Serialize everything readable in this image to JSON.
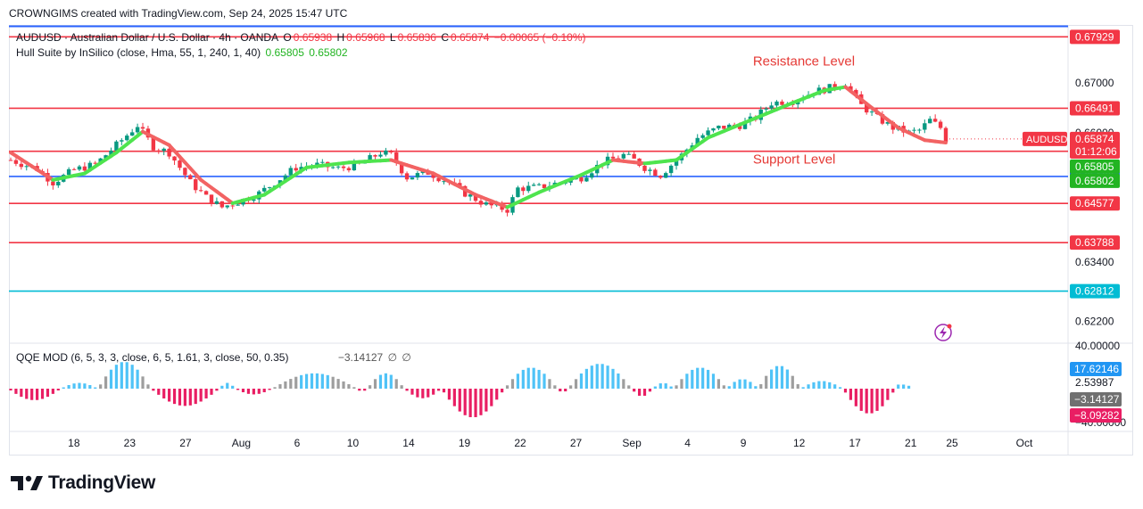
{
  "header": {
    "credit": "CROWNGIMS created with TradingView.com, Sep 24, 2025 15:47 UTC"
  },
  "legend": {
    "symbol_line": "AUDUSD · Australian Dollar / U.S. Dollar · 4h · OANDA",
    "o_label": "O",
    "o_value": "0.65938",
    "h_label": "H",
    "h_value": "0.65968",
    "l_label": "L",
    "l_value": "0.65836",
    "c_label": "C",
    "c_value": "0.65874",
    "change": "−0.00065 (−0.10%)",
    "hull_label": "Hull Suite by InSilico (close, Hma, 55, 1, 240, 1, 40)",
    "hull_value1": "0.65805",
    "hull_value2": "0.65802",
    "qqe_label": "QQE MOD (6, 5, 3, 3, close, 6, 5, 1.61, 3, close, 50, 0.35)",
    "qqe_value": "−3.14127",
    "qqe_empty1": "∅",
    "qqe_empty2": "∅"
  },
  "brand": {
    "name": "TradingView"
  },
  "colors": {
    "up": "#089981",
    "down": "#f23645",
    "hull_up": "#4ee44e",
    "hull_down": "#f26363",
    "resistance": "#f23645",
    "support_blue": "#2962ff",
    "teal": "#00bcd4",
    "qqe_pink": "#e91e63",
    "qqe_blue": "#4fc3f7",
    "qqe_gray": "#9e9e9e"
  },
  "chart_data": {
    "type": "candlestick",
    "symbol": "AUDUSD",
    "timeframe": "4h",
    "currency_label": "USD",
    "y_range": [
      0.618,
      0.6815
    ],
    "x_labels": [
      "18",
      "23",
      "27",
      "Aug",
      "6",
      "10",
      "14",
      "19",
      "22",
      "27",
      "Sep",
      "4",
      "9",
      "12",
      "17",
      "21",
      "25",
      "Oct"
    ],
    "price_axis_ticks": [
      "0.67000",
      "0.66000",
      "0.63400",
      "0.62200"
    ],
    "horizontal_lines": [
      {
        "value": 0.67929,
        "label": "0.67929",
        "color": "#f23645"
      },
      {
        "value": 0.66491,
        "label": "0.66491",
        "color": "#f23645"
      },
      {
        "value": 0.65626,
        "label": "0.65626",
        "color": "#f23645"
      },
      {
        "value": 0.6512,
        "label": "0.65120",
        "color": "#2962ff"
      },
      {
        "value": 0.64577,
        "label": "0.64577",
        "color": "#f23645"
      },
      {
        "value": 0.63788,
        "label": "0.63788",
        "color": "#f23645"
      },
      {
        "value": 0.62812,
        "label": "0.62812",
        "color": "#00bcd4"
      }
    ],
    "price_badges": [
      {
        "label": "AUDUSD",
        "value": "0.65874",
        "sub": "01:12:06",
        "color": "#f23645"
      },
      {
        "value": "0.65805",
        "color": "#22b422"
      },
      {
        "value": "0.65802",
        "color": "#22b422"
      }
    ],
    "annotations": [
      {
        "text": "Resistance Level",
        "x_index": 154,
        "price": 0.6735
      },
      {
        "text": "Support Level",
        "x_index": 154,
        "price": 0.6538
      }
    ],
    "price_path": [
      [
        0,
        0.6545
      ],
      [
        5,
        0.6527
      ],
      [
        8,
        0.65
      ],
      [
        12,
        0.6525
      ],
      [
        16,
        0.6536
      ],
      [
        20,
        0.6575
      ],
      [
        24,
        0.6615
      ],
      [
        27,
        0.6572
      ],
      [
        30,
        0.656
      ],
      [
        34,
        0.65
      ],
      [
        37,
        0.647
      ],
      [
        40,
        0.645
      ],
      [
        44,
        0.6465
      ],
      [
        47,
        0.6478
      ],
      [
        50,
        0.65
      ],
      [
        54,
        0.653
      ],
      [
        58,
        0.6535
      ],
      [
        62,
        0.6528
      ],
      [
        66,
        0.6535
      ],
      [
        70,
        0.656
      ],
      [
        72,
        0.6555
      ],
      [
        75,
        0.651
      ],
      [
        79,
        0.652
      ],
      [
        83,
        0.65
      ],
      [
        86,
        0.6478
      ],
      [
        90,
        0.6455
      ],
      [
        94,
        0.6445
      ],
      [
        96,
        0.6488
      ],
      [
        100,
        0.649
      ],
      [
        104,
        0.65
      ],
      [
        108,
        0.651
      ],
      [
        112,
        0.654
      ],
      [
        116,
        0.6555
      ],
      [
        118,
        0.6545
      ],
      [
        120,
        0.653
      ],
      [
        123,
        0.6515
      ],
      [
        127,
        0.6555
      ],
      [
        130,
        0.659
      ],
      [
        134,
        0.661
      ],
      [
        138,
        0.6615
      ],
      [
        141,
        0.663
      ],
      [
        144,
        0.666
      ],
      [
        148,
        0.6665
      ],
      [
        152,
        0.6682
      ],
      [
        155,
        0.669
      ],
      [
        158,
        0.67
      ],
      [
        161,
        0.6655
      ],
      [
        164,
        0.663
      ],
      [
        167,
        0.661
      ],
      [
        170,
        0.66
      ],
      [
        172,
        0.6605
      ],
      [
        174,
        0.6625
      ],
      [
        176,
        0.661
      ],
      [
        177,
        0.6587
      ]
    ],
    "bar_count": 178,
    "hull_path": [
      [
        0,
        0.656
      ],
      [
        8,
        0.6505
      ],
      [
        14,
        0.6518
      ],
      [
        20,
        0.656
      ],
      [
        25,
        0.6602
      ],
      [
        30,
        0.6575
      ],
      [
        36,
        0.6505
      ],
      [
        42,
        0.6458
      ],
      [
        48,
        0.6475
      ],
      [
        56,
        0.653
      ],
      [
        64,
        0.654
      ],
      [
        72,
        0.6545
      ],
      [
        80,
        0.6518
      ],
      [
        88,
        0.6475
      ],
      [
        94,
        0.645
      ],
      [
        100,
        0.648
      ],
      [
        108,
        0.6515
      ],
      [
        114,
        0.6545
      ],
      [
        120,
        0.6538
      ],
      [
        126,
        0.6545
      ],
      [
        132,
        0.659
      ],
      [
        140,
        0.6625
      ],
      [
        148,
        0.666
      ],
      [
        154,
        0.6685
      ],
      [
        158,
        0.6692
      ],
      [
        163,
        0.665
      ],
      [
        168,
        0.661
      ],
      [
        173,
        0.6585
      ],
      [
        177,
        0.658
      ]
    ],
    "qqe": {
      "y_range": [
        -40,
        40
      ],
      "axis_ticks": [
        "40.00000",
        "2.53987",
        "−40.00000"
      ],
      "badges": [
        {
          "value": "17.62146",
          "color": "#2196f3"
        },
        {
          "value": "−3.14127",
          "color": "#707070"
        },
        {
          "value": "−8.09282",
          "color": "#e91e63"
        }
      ],
      "segments": [
        [
          0,
          10,
          -12
        ],
        [
          10,
          17,
          6
        ],
        [
          17,
          27,
          28
        ],
        [
          27,
          40,
          -18
        ],
        [
          40,
          43,
          6
        ],
        [
          43,
          50,
          -6
        ],
        [
          50,
          66,
          16
        ],
        [
          66,
          68,
          -3
        ],
        [
          68,
          75,
          16
        ],
        [
          75,
          82,
          -10
        ],
        [
          82,
          94,
          -30
        ],
        [
          94,
          104,
          22
        ],
        [
          104,
          106,
          -4
        ],
        [
          106,
          118,
          26
        ],
        [
          118,
          122,
          -8
        ],
        [
          122,
          126,
          6
        ],
        [
          126,
          136,
          22
        ],
        [
          136,
          142,
          10
        ],
        [
          142,
          150,
          24
        ],
        [
          150,
          158,
          8
        ],
        [
          158,
          168,
          -26
        ],
        [
          168,
          170,
          6
        ],
        [
          170,
          171,
          3
        ]
      ]
    }
  }
}
